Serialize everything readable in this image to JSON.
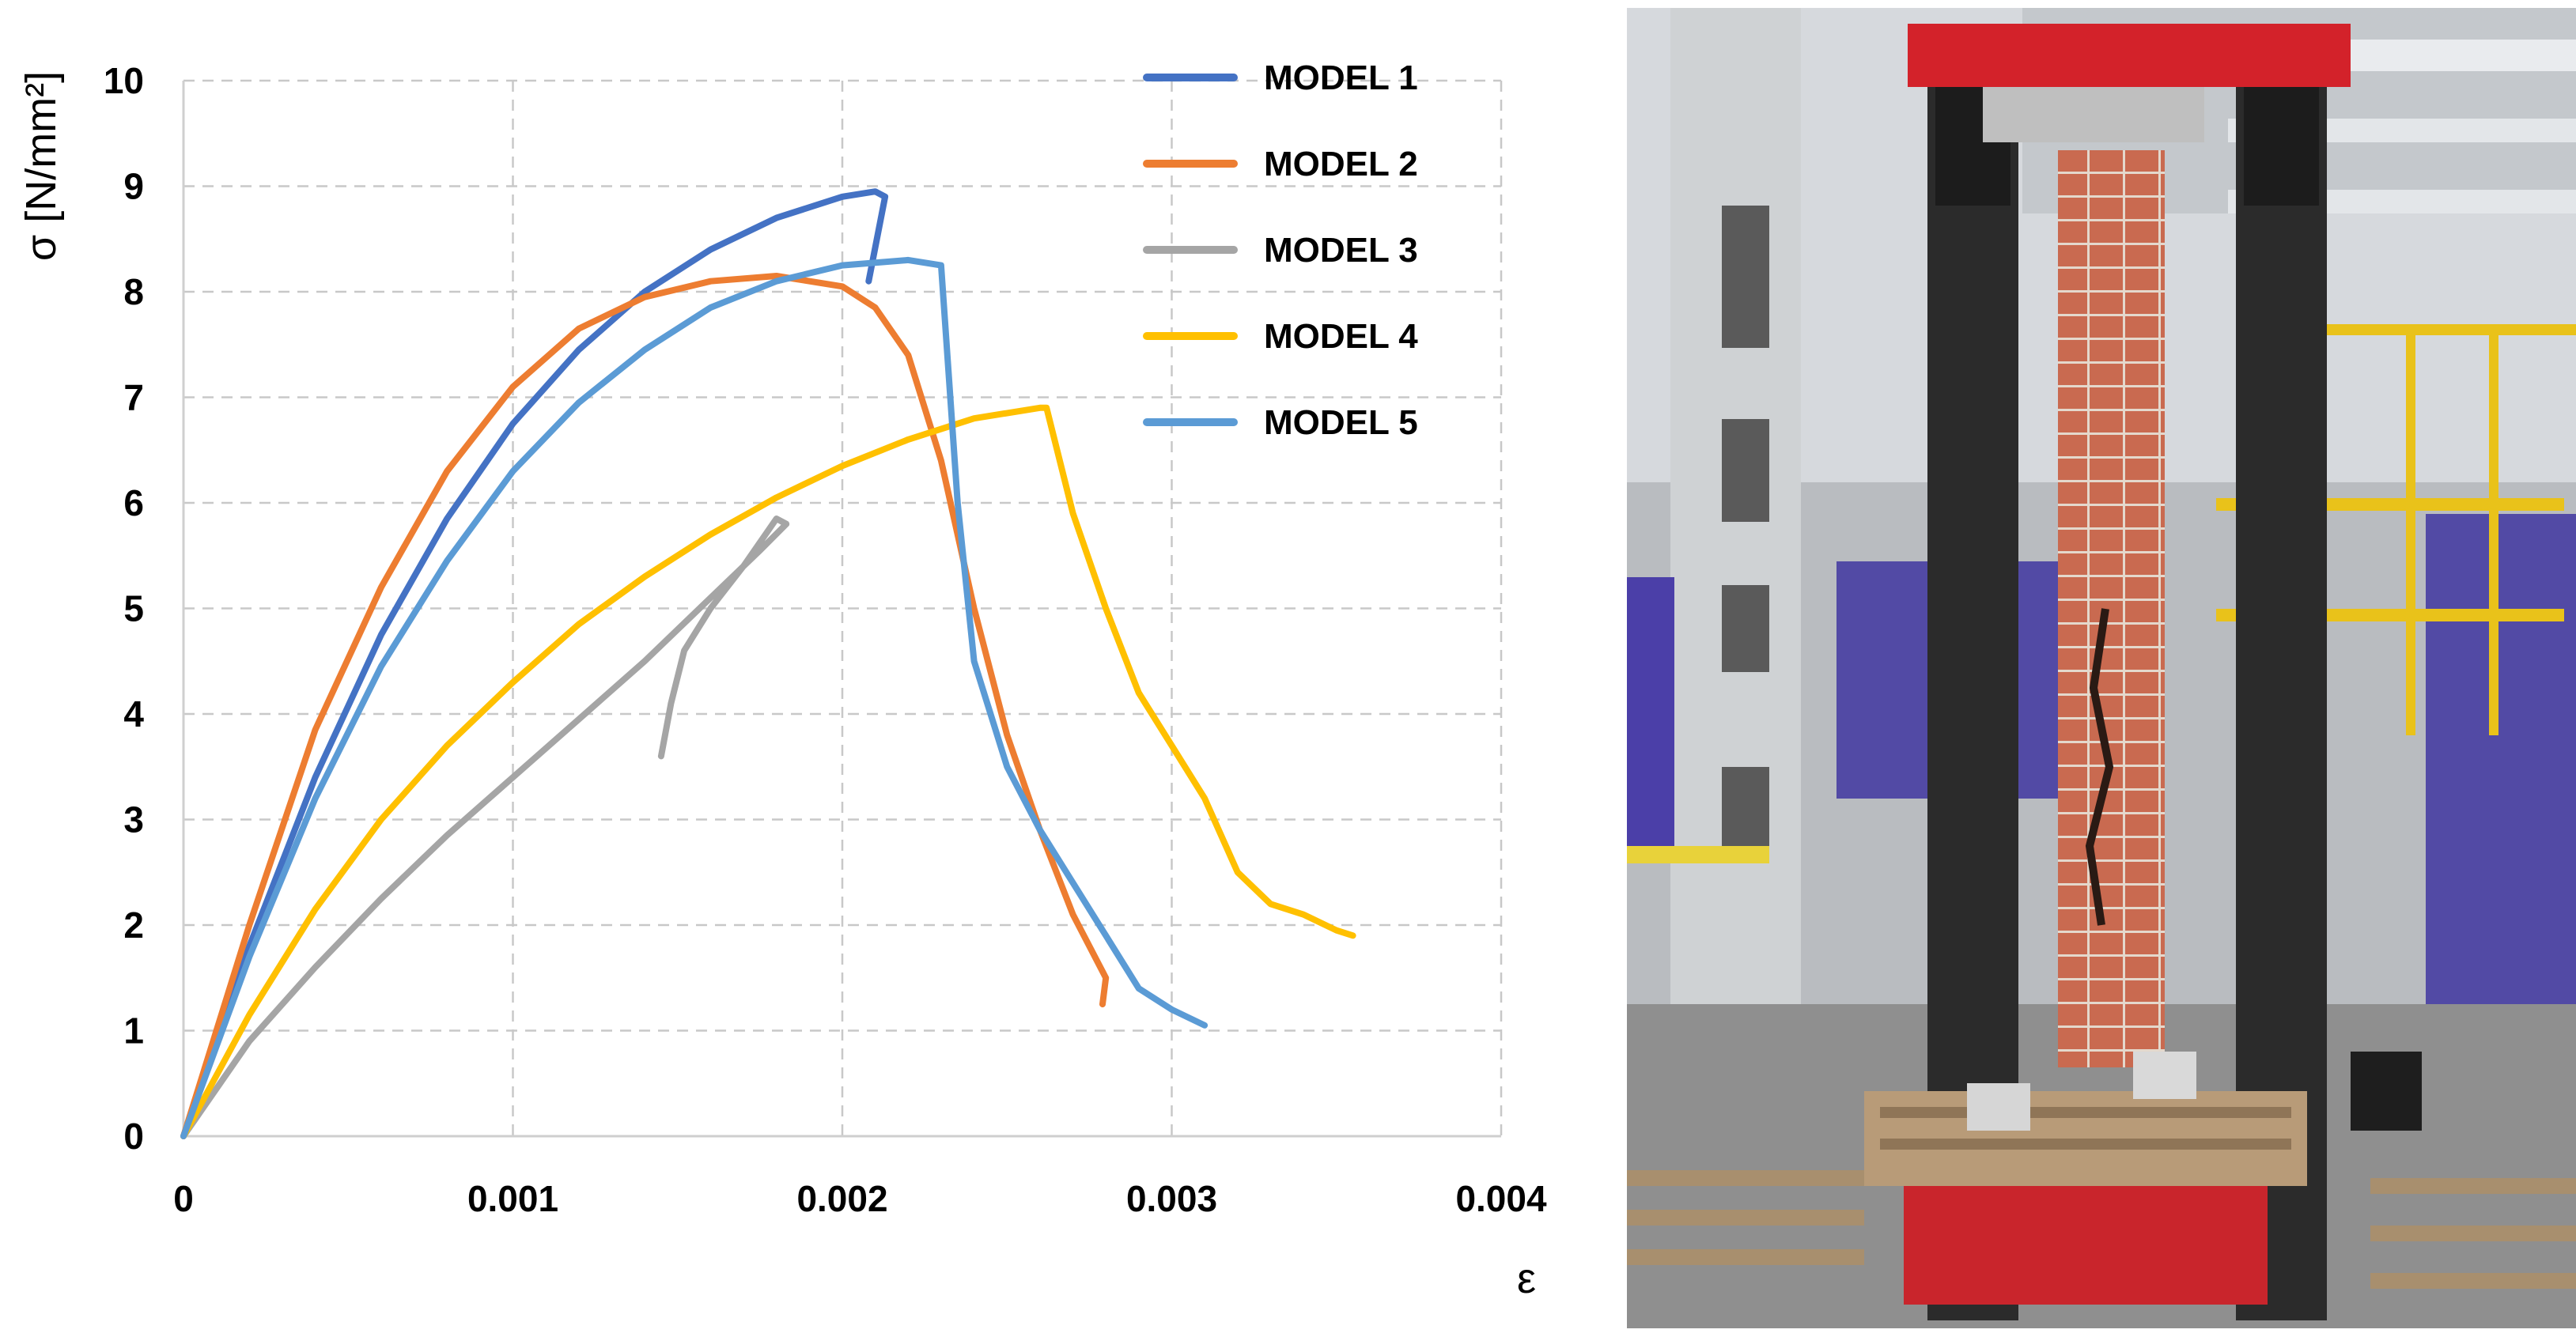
{
  "chart_data": {
    "type": "line",
    "title": "",
    "xlabel": "ε",
    "ylabel": "σ [N/mm²]",
    "xlim": [
      0,
      0.004
    ],
    "ylim": [
      0,
      10
    ],
    "x_ticks": [
      0,
      0.001,
      0.002,
      0.003,
      0.004
    ],
    "x_tick_labels": [
      "0",
      "0.001",
      "0.002",
      "0.003",
      "0.004"
    ],
    "y_ticks": [
      0,
      1,
      2,
      3,
      4,
      5,
      6,
      7,
      8,
      9,
      10
    ],
    "y_tick_labels": [
      "0",
      "1",
      "2",
      "3",
      "4",
      "5",
      "6",
      "7",
      "8",
      "9",
      "10"
    ],
    "grid": true,
    "legend_position": "top-right",
    "series": [
      {
        "name": "MODEL 1",
        "color": "#4472C4",
        "x": [
          0,
          0.0002,
          0.0004,
          0.0006,
          0.0008,
          0.001,
          0.0012,
          0.0014,
          0.0016,
          0.0018,
          0.002,
          0.0021,
          0.00213,
          0.00208
        ],
        "y": [
          0,
          1.8,
          3.4,
          4.75,
          5.85,
          6.75,
          7.45,
          8.0,
          8.4,
          8.7,
          8.9,
          8.95,
          8.9,
          8.1
        ]
      },
      {
        "name": "MODEL 2",
        "color": "#ED7D31",
        "x": [
          0,
          0.0002,
          0.0004,
          0.0006,
          0.0008,
          0.001,
          0.0012,
          0.0014,
          0.0016,
          0.0018,
          0.002,
          0.0021,
          0.0022,
          0.0023,
          0.0024,
          0.0025,
          0.0026,
          0.0027,
          0.0028,
          0.00279
        ],
        "y": [
          0,
          2.0,
          3.85,
          5.2,
          6.3,
          7.1,
          7.65,
          7.95,
          8.1,
          8.15,
          8.05,
          7.85,
          7.4,
          6.4,
          5.0,
          3.8,
          2.9,
          2.1,
          1.5,
          1.25
        ]
      },
      {
        "name": "MODEL 3",
        "color": "#A5A5A5",
        "x": [
          0,
          0.0002,
          0.0004,
          0.0006,
          0.0008,
          0.001,
          0.0012,
          0.0014,
          0.0016,
          0.00175,
          0.00183,
          0.0018,
          0.0017,
          0.0016,
          0.00152,
          0.00148,
          0.00145
        ],
        "y": [
          0,
          0.9,
          1.6,
          2.25,
          2.85,
          3.4,
          3.95,
          4.5,
          5.1,
          5.55,
          5.8,
          5.85,
          5.4,
          5.0,
          4.6,
          4.1,
          3.6
        ]
      },
      {
        "name": "MODEL 4",
        "color": "#FFC000",
        "x": [
          0,
          0.0002,
          0.0004,
          0.0006,
          0.0008,
          0.001,
          0.0012,
          0.0014,
          0.0016,
          0.0018,
          0.002,
          0.0022,
          0.0024,
          0.0026,
          0.00262,
          0.0027,
          0.0028,
          0.0029,
          0.003,
          0.0031,
          0.0032,
          0.0033,
          0.0034,
          0.0035,
          0.00355
        ],
        "y": [
          0,
          1.15,
          2.15,
          3.0,
          3.7,
          4.3,
          4.85,
          5.3,
          5.7,
          6.05,
          6.35,
          6.6,
          6.8,
          6.9,
          6.9,
          5.9,
          5.0,
          4.2,
          3.7,
          3.2,
          2.5,
          2.2,
          2.1,
          1.95,
          1.9
        ]
      },
      {
        "name": "MODEL 5",
        "color": "#5B9BD5",
        "x": [
          0,
          0.0002,
          0.0004,
          0.0006,
          0.0008,
          0.001,
          0.0012,
          0.0014,
          0.0016,
          0.0018,
          0.002,
          0.0022,
          0.0023,
          0.00235,
          0.0024,
          0.0025,
          0.0026,
          0.0027,
          0.0028,
          0.0029,
          0.003,
          0.0031
        ],
        "y": [
          0,
          1.7,
          3.2,
          4.45,
          5.45,
          6.3,
          6.95,
          7.45,
          7.85,
          8.1,
          8.25,
          8.3,
          8.25,
          6.0,
          4.5,
          3.5,
          2.9,
          2.4,
          1.9,
          1.4,
          1.2,
          1.05
        ]
      }
    ]
  },
  "photo": {
    "subject": "brick-column-compression-test-photo"
  }
}
